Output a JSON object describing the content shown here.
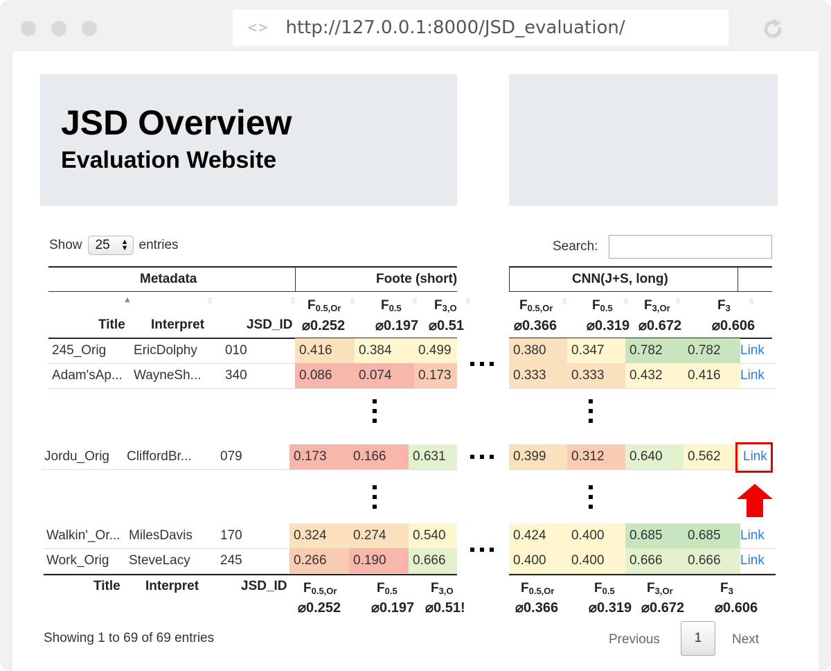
{
  "browser": {
    "url": "http://127.0.0.1:8000/JSD_evaluation/",
    "code_glyph": "<>"
  },
  "header": {
    "title": "JSD Overview",
    "subtitle": "Evaluation Website"
  },
  "controls": {
    "show_label": "Show",
    "entries_value": "25",
    "entries_label": "entries",
    "search_label": "Search:",
    "search_value": ""
  },
  "table": {
    "groups": {
      "metadata": "Metadata",
      "foote": "Foote (short)",
      "cnn": "CNN(J+S, long)"
    },
    "columns": {
      "title": "Title",
      "interpret": "Interpret",
      "jsd_id": "JSD_ID"
    },
    "foote_cols": [
      {
        "base": "F",
        "sub": "0.5,Or",
        "avg": "⌀0.252"
      },
      {
        "base": "F",
        "sub": "0.5",
        "avg": "⌀0.197"
      },
      {
        "base": "F",
        "sub": "3,O",
        "avg": "⌀0.51"
      }
    ],
    "foote_cols_footer_avg3": "⌀0.51!",
    "cnn_cols": [
      {
        "base": "F",
        "sub": "0.5,Or",
        "avg": "⌀0.366"
      },
      {
        "base": "F",
        "sub": "0.5",
        "avg": "⌀0.319"
      },
      {
        "base": "F",
        "sub": "3,Or",
        "avg": "⌀0.672"
      },
      {
        "base": "F",
        "sub": "3",
        "avg": "⌀0.606"
      }
    ],
    "link_label": "Link",
    "rows": [
      {
        "title": "245_Orig",
        "interpret": "EricDolphy",
        "id": "010",
        "foote": [
          "0.416",
          "0.384",
          "0.499"
        ],
        "cnn": [
          "0.380",
          "0.347",
          "0.782",
          "0.782"
        ]
      },
      {
        "title": "Adam'sAp...",
        "interpret": "WayneSh...",
        "id": "340",
        "foote": [
          "0.086",
          "0.074",
          "0.173"
        ],
        "cnn": [
          "0.333",
          "0.333",
          "0.432",
          "0.416"
        ]
      },
      {
        "title": "Jordu_Orig",
        "interpret": "CliffordBr...",
        "id": "079",
        "foote": [
          "0.173",
          "0.166",
          "0.631"
        ],
        "cnn": [
          "0.399",
          "0.312",
          "0.640",
          "0.562"
        ]
      },
      {
        "title": "Walkin'_Or...",
        "interpret": "MilesDavis",
        "id": "170",
        "foote": [
          "0.324",
          "0.274",
          "0.540"
        ],
        "cnn": [
          "0.424",
          "0.400",
          "0.685",
          "0.685"
        ]
      },
      {
        "title": "Work_Orig",
        "interpret": "SteveLacy",
        "id": "245",
        "foote": [
          "0.266",
          "0.190",
          "0.666"
        ],
        "cnn": [
          "0.400",
          "0.400",
          "0.666",
          "0.666"
        ]
      }
    ]
  },
  "footer": {
    "info": "Showing 1 to 69 of 69 entries",
    "previous": "Previous",
    "page": "1",
    "next": "Next"
  },
  "colors": {
    "panel": "#e8ebee",
    "link": "#2a7ae2",
    "highlight": "#e00000",
    "cell_colors": {
      "red": "#f6b6aa",
      "salmon": "#f9cbb3",
      "peach": "#fbe0bd",
      "cream": "#fdf6cf",
      "lightgreen": "#e3f1cf",
      "green": "#c8e5c0"
    }
  }
}
